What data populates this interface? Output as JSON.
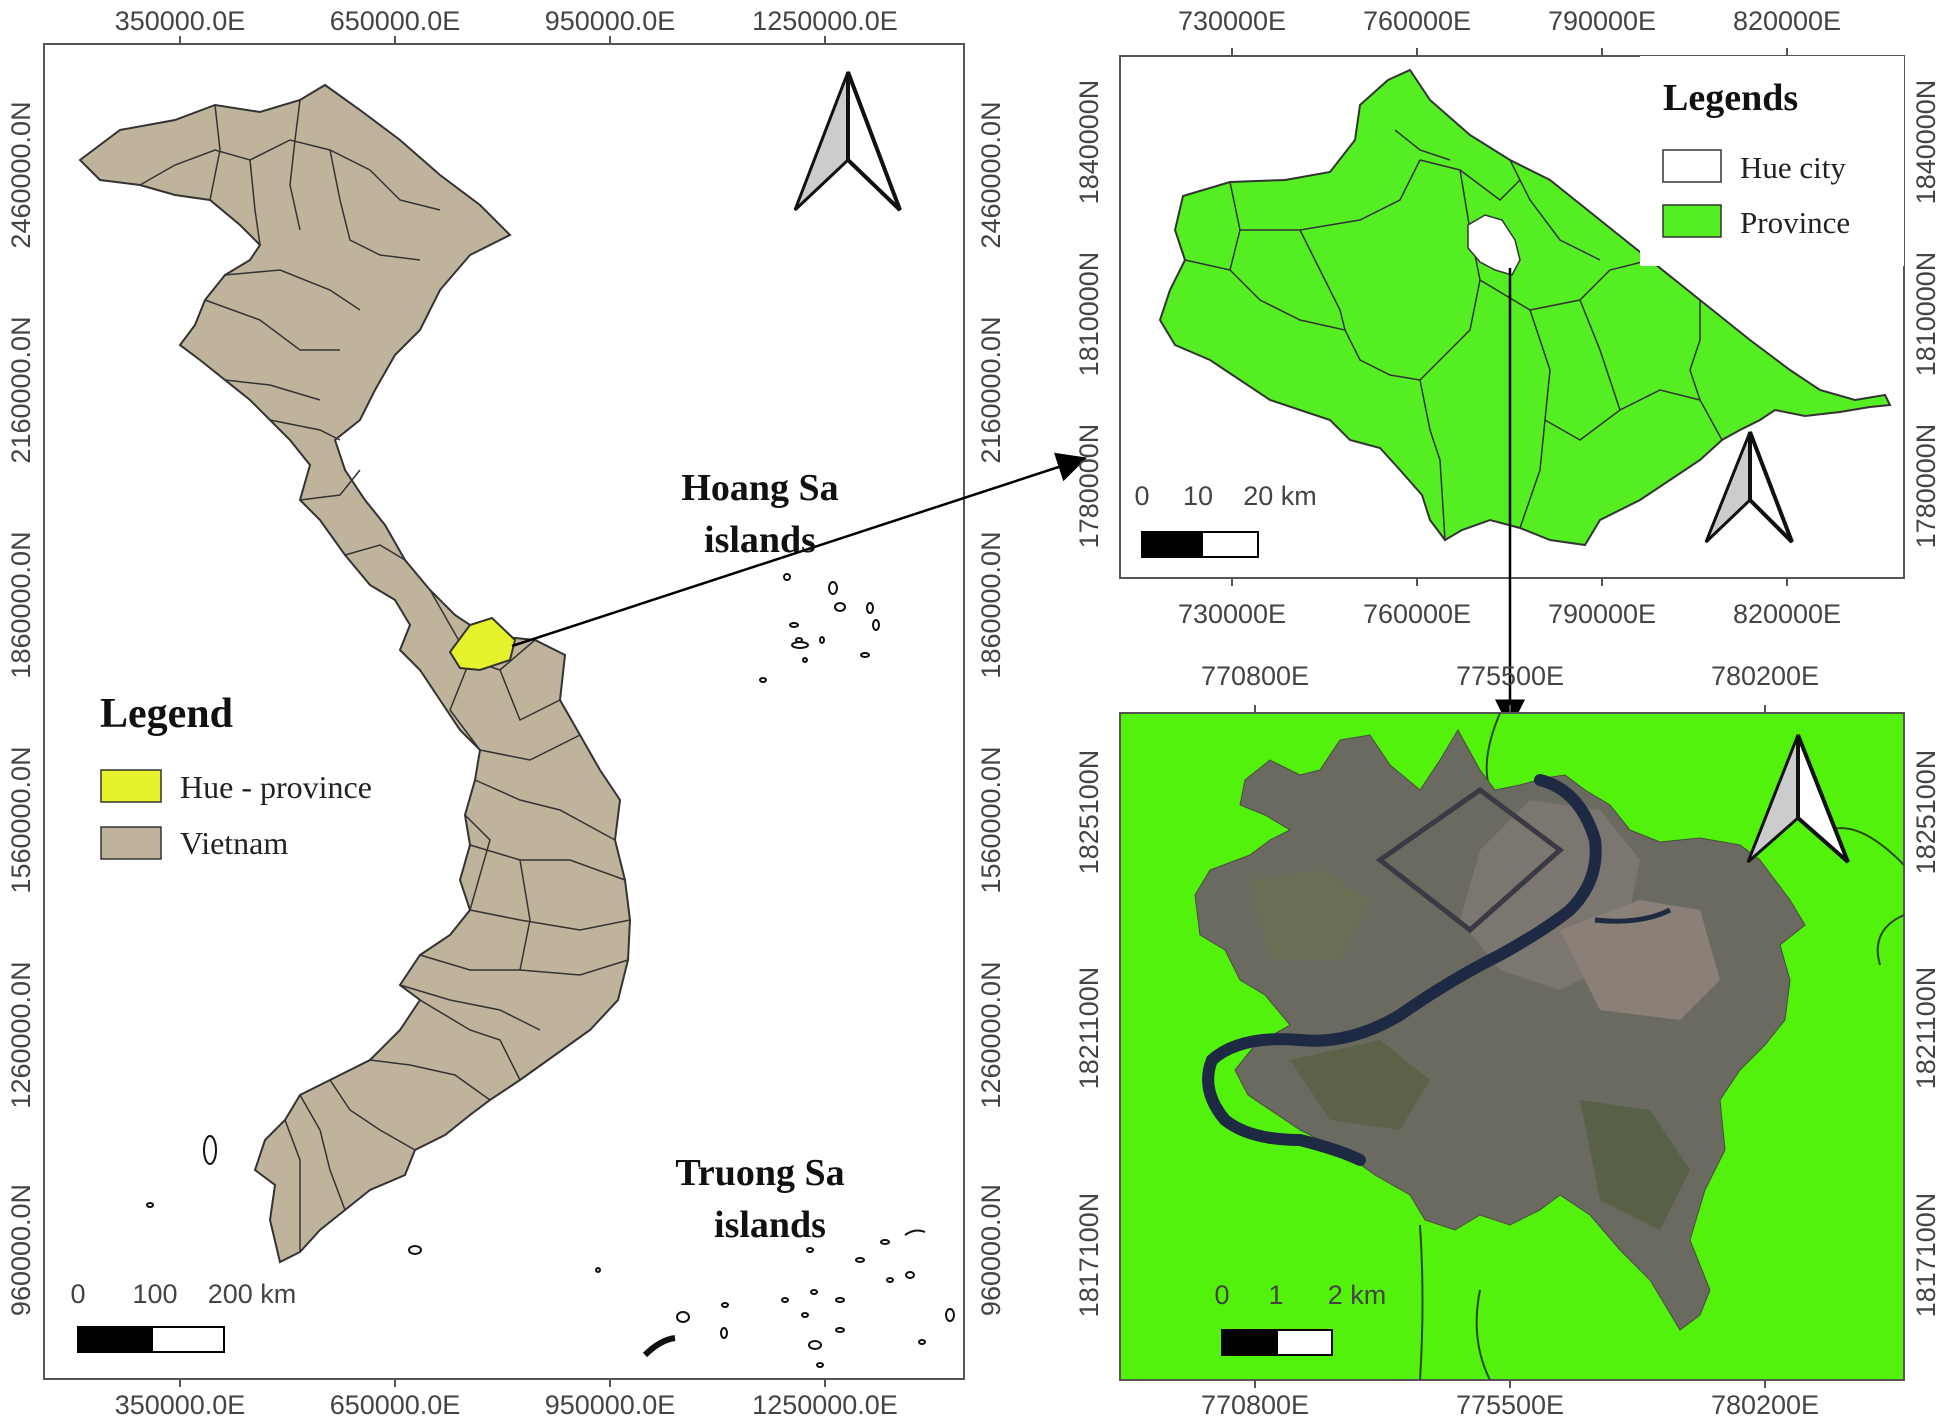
{
  "map_vietnam": {
    "x_ticks": [
      "350000.0E",
      "650000.0E",
      "950000.0E",
      "1250000.0E"
    ],
    "y_ticks": [
      "2460000.0N",
      "2160000.0N",
      "1860000.0N",
      "1560000.0N",
      "1260000.0N",
      "960000.0N"
    ],
    "legend": {
      "title": "Legend",
      "items": [
        {
          "label": "Hue - province",
          "color": "#e6f22b"
        },
        {
          "label": "Vietnam",
          "color": "#c0b39c"
        }
      ]
    },
    "hoang_sa": [
      "Hoang Sa",
      "islands"
    ],
    "truong_sa": [
      "Truong Sa",
      "islands"
    ],
    "scale": {
      "labels": [
        "0",
        "100",
        "200 km"
      ]
    }
  },
  "map_province": {
    "x_ticks": [
      "730000E",
      "760000E",
      "790000E",
      "820000E"
    ],
    "y_ticks": [
      "1840000N",
      "1810000N",
      "1780000N"
    ],
    "legend": {
      "title": "Legends",
      "items": [
        {
          "label": "Hue city",
          "color": "#ffffff"
        },
        {
          "label": "Province",
          "color": "#55ee22"
        }
      ]
    },
    "scale": {
      "labels": [
        "0",
        "10",
        "20 km"
      ]
    }
  },
  "map_city": {
    "x_ticks": [
      "770800E",
      "775500E",
      "780200E"
    ],
    "y_ticks": [
      "1825100N",
      "1821100N",
      "1817100N"
    ],
    "scale": {
      "labels": [
        "0",
        "1",
        "2 km"
      ]
    }
  },
  "colors": {
    "vietnam_fill": "#c0b39c",
    "hue_highlight": "#e6f22b",
    "province_fill": "#55ee22",
    "city_background": "#52f20c",
    "satellite": "#6a6a60",
    "river": "#1e2a44"
  }
}
